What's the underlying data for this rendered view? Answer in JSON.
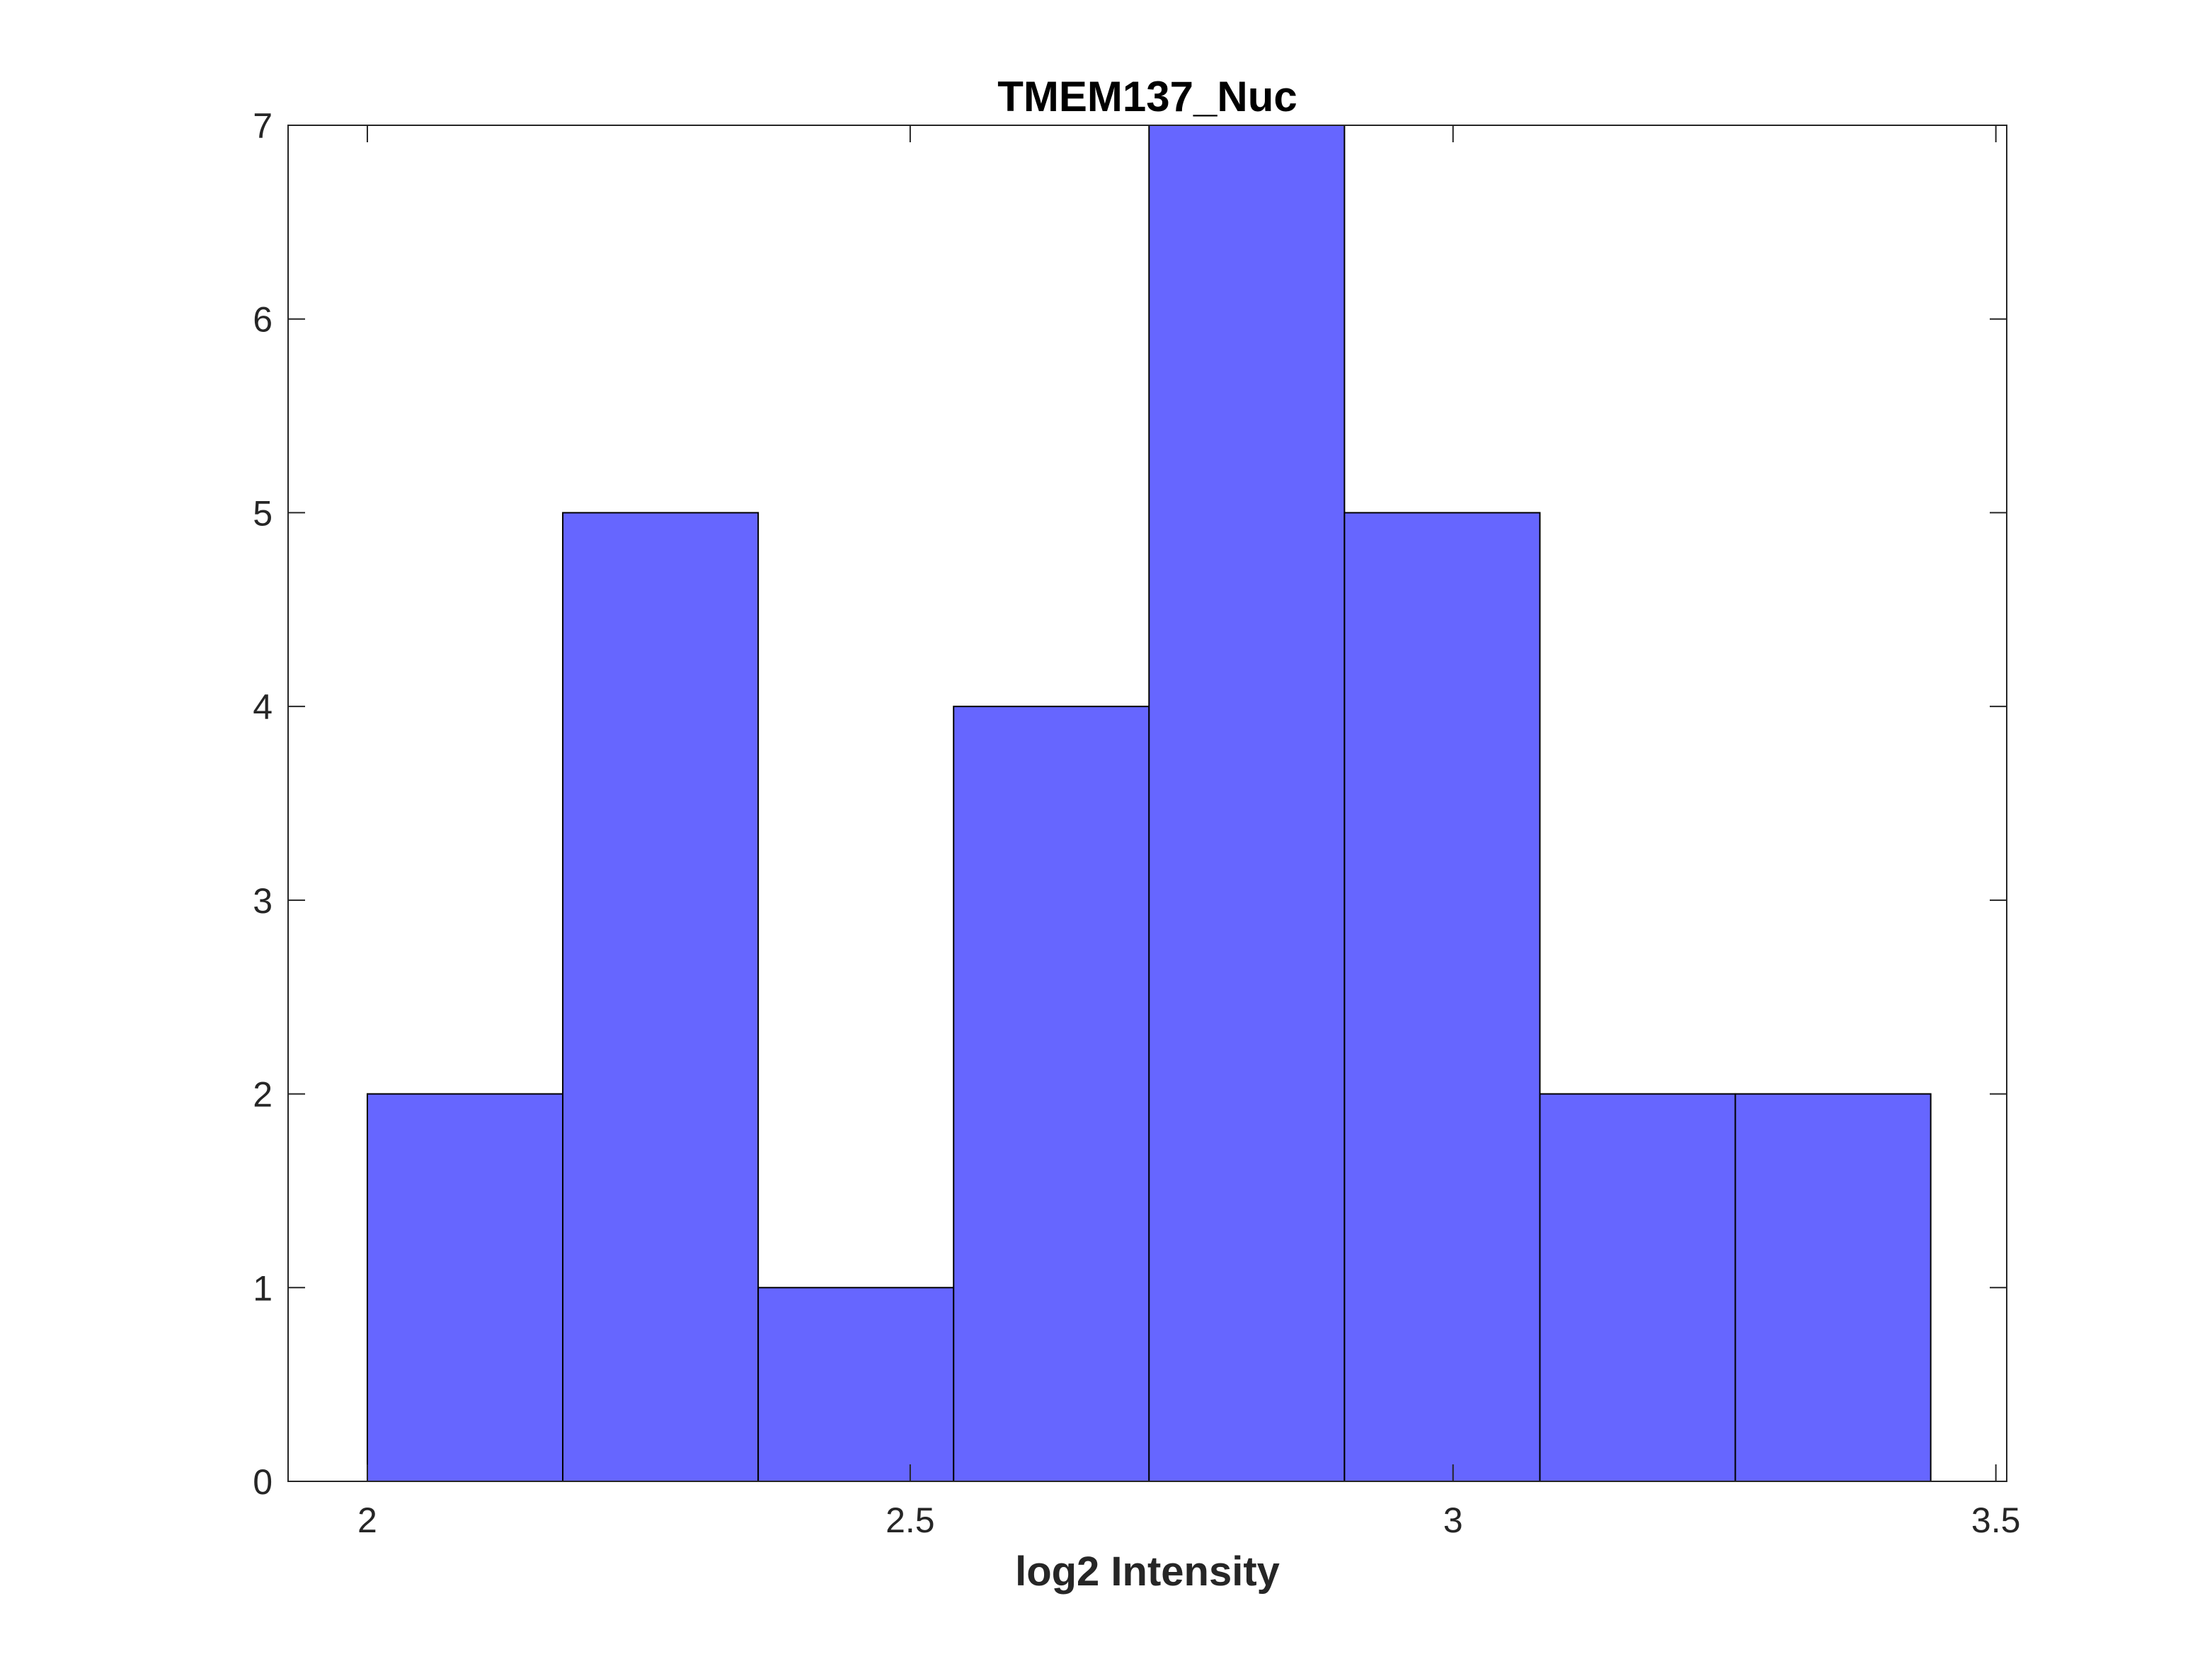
{
  "chart_data": {
    "type": "bar",
    "title": "TMEM137_Nuc",
    "xlabel": "log2 Intensity",
    "ylabel": "",
    "xlim": [
      1.927,
      3.51
    ],
    "ylim": [
      0,
      7
    ],
    "xticks": [
      2,
      2.5,
      3,
      3.5
    ],
    "xtick_labels": [
      "2",
      "2.5",
      "3",
      "3.5"
    ],
    "yticks": [
      0,
      1,
      2,
      3,
      4,
      5,
      6,
      7
    ],
    "ytick_labels": [
      "0",
      "1",
      "2",
      "3",
      "4",
      "5",
      "6",
      "7"
    ],
    "bin_edges": [
      2.0,
      2.18,
      2.36,
      2.54,
      2.72,
      2.9,
      3.08,
      3.26,
      3.44
    ],
    "values": [
      2,
      5,
      1,
      4,
      7,
      5,
      2,
      2
    ],
    "bar_color": "#6666ff",
    "edge_color": "#000000",
    "grid": false,
    "legend": "none"
  }
}
